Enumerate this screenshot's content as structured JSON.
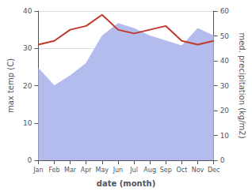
{
  "chart_data": {
    "type": "line",
    "xlabel": "date (month)",
    "ylabel": "max temp (C)",
    "y2label": "med. precipitation (kg/m2)",
    "categories": [
      "Jan",
      "Feb",
      "Mar",
      "Apr",
      "May",
      "Jun",
      "Jul",
      "Aug",
      "Sep",
      "Oct",
      "Nov",
      "Dec"
    ],
    "series": [
      {
        "type": "area",
        "axis": "y2",
        "color": "#b3bcec",
        "values": [
          37,
          30,
          34,
          39,
          50,
          55,
          53,
          50,
          48,
          46,
          53,
          50
        ]
      },
      {
        "type": "line",
        "color": "#c0392b",
        "values": [
          31,
          32,
          35,
          36,
          39,
          35,
          34,
          35,
          36,
          32,
          31,
          32
        ]
      }
    ],
    "ylim": [
      0,
      40
    ],
    "yticks": [
      0,
      10,
      20,
      30,
      40
    ],
    "y2lim": [
      0,
      60
    ],
    "y2ticks": [
      0,
      10,
      20,
      30,
      40,
      50,
      60
    ],
    "grid": true
  }
}
